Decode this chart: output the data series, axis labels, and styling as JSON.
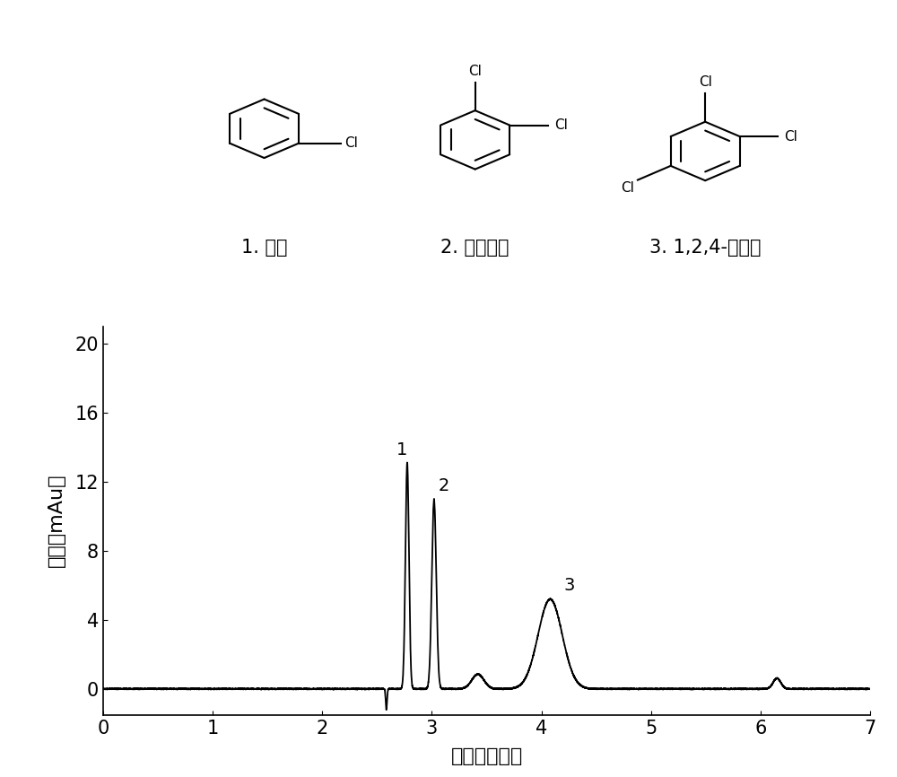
{
  "xlabel": "时间（分钟）",
  "ylabel": "吸收（mAu）",
  "xlim": [
    0,
    7
  ],
  "ylim": [
    -1.5,
    21
  ],
  "xticks": [
    0,
    1,
    2,
    3,
    4,
    5,
    6,
    7
  ],
  "yticks": [
    0,
    4,
    8,
    12,
    16,
    20
  ],
  "label1": "1. 氯苯",
  "label2": "2. 邻二氯苯",
  "label3": "3. 1,2,4-三氯苯",
  "line_color": "#000000",
  "peak1_x": 2.77,
  "peak1_y": 13.1,
  "peak2_x": 3.02,
  "peak2_y": 11.0,
  "peak3_x": 4.1,
  "peak3_y": 5.3,
  "fontsize_label": 16,
  "fontsize_tick": 15,
  "fontsize_struct_label": 15,
  "fontsize_peak_label": 14
}
